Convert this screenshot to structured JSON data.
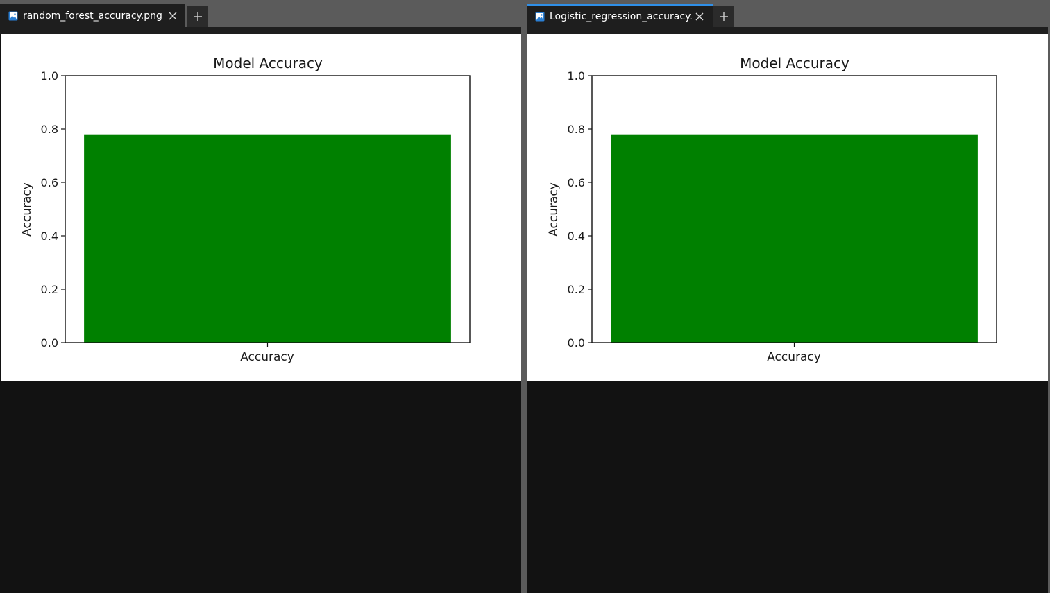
{
  "panes": [
    {
      "tab": {
        "label": "random_forest_accuracy.png",
        "icon": "image-file-icon",
        "close_icon": "close-icon",
        "add_icon": "plus-icon"
      },
      "chart": {
        "title": "Model Accuracy",
        "xlabel": "Accuracy",
        "ylabel": "Accuracy",
        "yticks": [
          "0.0",
          "0.2",
          "0.4",
          "0.6",
          "0.8",
          "1.0"
        ]
      }
    },
    {
      "tab": {
        "label": "Logistic_regression_accuracy.png",
        "icon": "image-file-icon",
        "close_icon": "close-icon",
        "add_icon": "plus-icon"
      },
      "chart": {
        "title": "Model Accuracy",
        "xlabel": "Accuracy",
        "ylabel": "Accuracy",
        "yticks": [
          "0.0",
          "0.2",
          "0.4",
          "0.6",
          "0.8",
          "1.0"
        ]
      }
    }
  ],
  "chart_data": [
    {
      "type": "bar",
      "title": "Model Accuracy",
      "xlabel": "Accuracy",
      "ylabel": "Accuracy",
      "categories": [
        "Accuracy"
      ],
      "values": [
        0.78
      ],
      "ylim": [
        0,
        1
      ],
      "bar_color": "#008000",
      "grid": false
    },
    {
      "type": "bar",
      "title": "Model Accuracy",
      "xlabel": "Accuracy",
      "ylabel": "Accuracy",
      "categories": [
        "Accuracy"
      ],
      "values": [
        0.78
      ],
      "ylim": [
        0,
        1
      ],
      "bar_color": "#008000",
      "grid": false
    }
  ],
  "colors": {
    "active_tab_accent": "#2f8fe8",
    "bar": "#008000"
  }
}
